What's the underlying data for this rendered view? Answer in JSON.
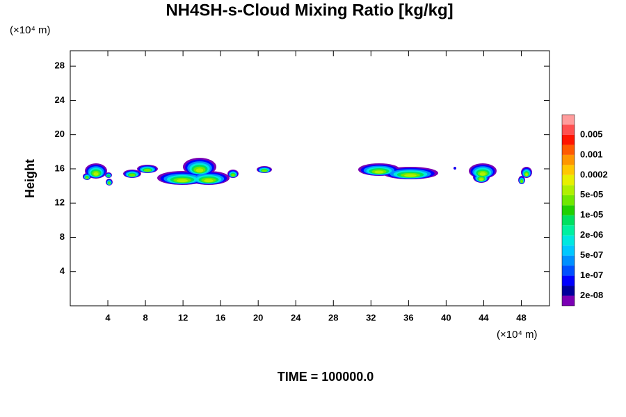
{
  "chart_data": {
    "type": "contour",
    "title": "NH4SH-s-Cloud Mixing Ratio [kg/kg]",
    "y_label": "Height",
    "y_unit": "(×10⁴ m)",
    "x_unit": "(×10⁴ m)",
    "footer": "TIME = 100000.0",
    "xlim": [
      0,
      51
    ],
    "xticks": [
      4,
      8,
      12,
      16,
      20,
      24,
      28,
      32,
      36,
      40,
      44,
      48
    ],
    "ylim": [
      0,
      29.8
    ],
    "yticks": [
      4,
      8,
      12,
      16,
      20,
      24,
      28
    ],
    "colorbar_levels": [
      {
        "value": 2e-08,
        "label": "2e-08"
      },
      {
        "value": 1e-07,
        "label": "1e-07"
      },
      {
        "value": 5e-07,
        "label": "5e-07"
      },
      {
        "value": 2e-06,
        "label": "2e-06"
      },
      {
        "value": 1e-05,
        "label": "1e-05"
      },
      {
        "value": 5e-05,
        "label": "5e-05"
      },
      0.0002,
      0.001,
      0.005
    ],
    "colorbar_colors": [
      "#7b00b4",
      "#00009b",
      "#0000ff",
      "#0050ff",
      "#0090ff",
      "#00c8ff",
      "#00e8e0",
      "#00f0a0",
      "#00e060",
      "#20d000",
      "#70e800",
      "#b0f000",
      "#e8f000",
      "#ffc800",
      "#ff9600",
      "#ff5a00",
      "#ff1400",
      "#ff5050",
      "#ff9c9c"
    ]
  }
}
